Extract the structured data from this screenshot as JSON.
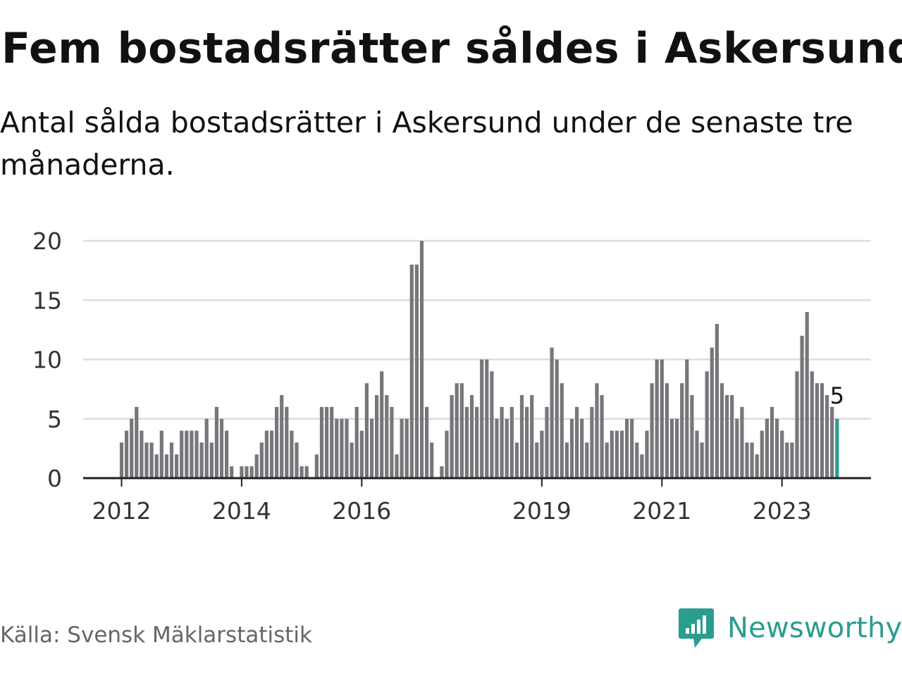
{
  "header": {
    "title": "Fem bostadsrätter såldes i Askersund",
    "subtitle": "Antal sålda bostadsrätter i Askersund under de senaste tre månaderna."
  },
  "footer": {
    "source": "Källa: Svensk Mäklarstatistik",
    "brand": "Newsworthy"
  },
  "colors": {
    "bar": "#77767b",
    "highlight": "#2a9d8f",
    "grid": "#dddddd",
    "axis": "#222222"
  },
  "chart_data": {
    "type": "bar",
    "x_start": "2012-01",
    "x_unit": "month",
    "ylim": [
      0,
      20
    ],
    "yticks": [
      0,
      5,
      10,
      15,
      20
    ],
    "xticks": [
      {
        "label": "2012",
        "date": "2012-01"
      },
      {
        "label": "2014",
        "date": "2014-01"
      },
      {
        "label": "2016",
        "date": "2016-01"
      },
      {
        "label": "2019",
        "date": "2019-01"
      },
      {
        "label": "2021",
        "date": "2021-01"
      },
      {
        "label": "2023",
        "date": "2023-01"
      }
    ],
    "values": [
      3,
      4,
      5,
      6,
      4,
      3,
      3,
      2,
      4,
      2,
      3,
      2,
      4,
      4,
      4,
      4,
      3,
      5,
      3,
      6,
      5,
      4,
      1,
      0,
      1,
      1,
      1,
      2,
      3,
      4,
      4,
      6,
      7,
      6,
      4,
      3,
      1,
      1,
      0,
      2,
      6,
      6,
      6,
      5,
      5,
      5,
      3,
      6,
      4,
      8,
      5,
      7,
      9,
      7,
      6,
      2,
      5,
      5,
      18,
      18,
      20,
      6,
      3,
      0,
      1,
      4,
      7,
      8,
      8,
      6,
      7,
      6,
      10,
      10,
      9,
      5,
      6,
      5,
      6,
      3,
      7,
      6,
      7,
      3,
      4,
      6,
      11,
      10,
      8,
      3,
      5,
      6,
      5,
      3,
      6,
      8,
      7,
      3,
      4,
      4,
      4,
      5,
      5,
      3,
      2,
      4,
      8,
      10,
      10,
      8,
      5,
      5,
      8,
      10,
      7,
      4,
      3,
      9,
      11,
      13,
      8,
      7,
      7,
      5,
      6,
      3,
      3,
      2,
      4,
      5,
      6,
      5,
      4,
      3,
      3,
      9,
      12,
      14,
      9,
      8,
      8,
      7,
      6,
      5
    ],
    "highlight_last": true,
    "last_value_label": "5",
    "grid": true
  }
}
